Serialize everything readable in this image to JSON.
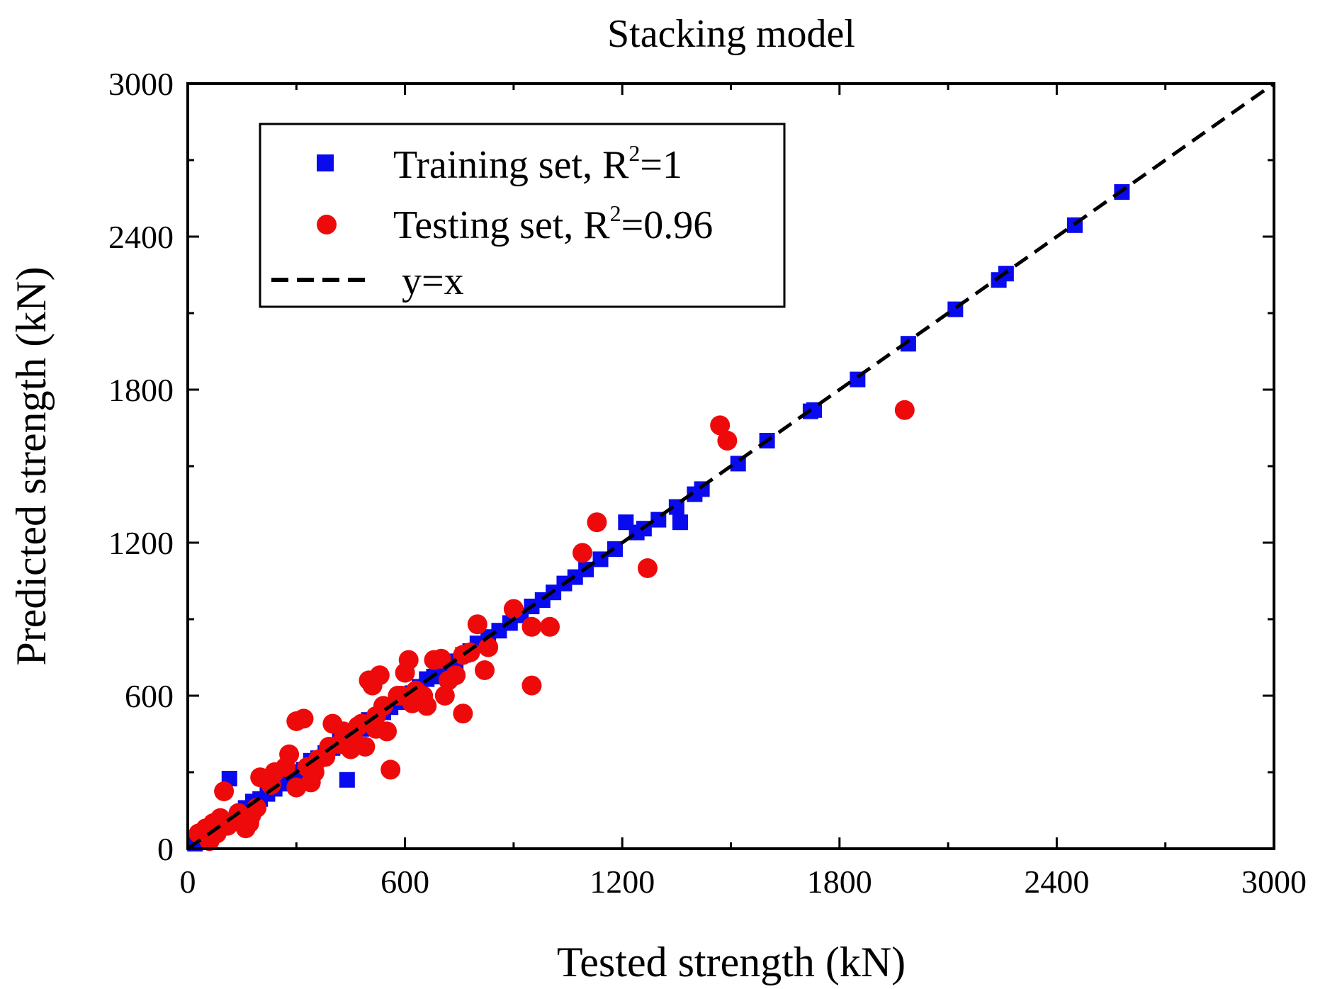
{
  "chart_data": {
    "type": "scatter",
    "title": "Stacking model",
    "xlabel": "Tested strength (kN)",
    "ylabel": "Predicted strength (kN)",
    "xlim": [
      0,
      3000
    ],
    "ylim": [
      0,
      3000
    ],
    "xticks": [
      "0",
      "600",
      "1200",
      "1800",
      "2400",
      "3000"
    ],
    "yticks": [
      "0",
      "600",
      "1200",
      "1800",
      "2400",
      "3000"
    ],
    "legend": {
      "position": "top-left",
      "entries": [
        {
          "name": "Training set, R",
          "sup": "2",
          "tail": "=1",
          "marker": "square"
        },
        {
          "name": "Testing set, R",
          "sup": "2",
          "tail": "=0.96",
          "marker": "circle"
        },
        {
          "name": "y=x",
          "marker": "dashed-line"
        }
      ]
    },
    "colors": {
      "training": "#0a0aee",
      "testing": "#ee0a0a",
      "line": "#000000"
    },
    "reference_line": {
      "name": "y=x",
      "from": [
        0,
        0
      ],
      "to": [
        3000,
        3000
      ]
    },
    "series": [
      {
        "name": "Training set",
        "marker": "square",
        "points": [
          [
            20,
            20
          ],
          [
            40,
            45
          ],
          [
            60,
            55
          ],
          [
            80,
            85
          ],
          [
            100,
            95
          ],
          [
            115,
            275
          ],
          [
            120,
            110
          ],
          [
            140,
            135
          ],
          [
            160,
            160
          ],
          [
            180,
            185
          ],
          [
            200,
            195
          ],
          [
            220,
            215
          ],
          [
            240,
            235
          ],
          [
            260,
            255
          ],
          [
            280,
            285
          ],
          [
            300,
            300
          ],
          [
            320,
            310
          ],
          [
            340,
            345
          ],
          [
            360,
            355
          ],
          [
            380,
            375
          ],
          [
            400,
            395
          ],
          [
            420,
            425
          ],
          [
            440,
            270
          ],
          [
            460,
            455
          ],
          [
            480,
            470
          ],
          [
            500,
            505
          ],
          [
            520,
            515
          ],
          [
            540,
            535
          ],
          [
            560,
            555
          ],
          [
            580,
            575
          ],
          [
            600,
            600
          ],
          [
            620,
            610
          ],
          [
            640,
            635
          ],
          [
            660,
            665
          ],
          [
            680,
            675
          ],
          [
            700,
            705
          ],
          [
            720,
            715
          ],
          [
            740,
            735
          ],
          [
            760,
            760
          ],
          [
            780,
            775
          ],
          [
            800,
            805
          ],
          [
            830,
            830
          ],
          [
            860,
            855
          ],
          [
            890,
            885
          ],
          [
            920,
            915
          ],
          [
            950,
            950
          ],
          [
            980,
            975
          ],
          [
            1010,
            1005
          ],
          [
            1040,
            1040
          ],
          [
            1070,
            1065
          ],
          [
            1100,
            1095
          ],
          [
            1140,
            1135
          ],
          [
            1180,
            1175
          ],
          [
            1210,
            1280
          ],
          [
            1240,
            1240
          ],
          [
            1260,
            1255
          ],
          [
            1300,
            1290
          ],
          [
            1350,
            1340
          ],
          [
            1360,
            1280
          ],
          [
            1400,
            1390
          ],
          [
            1420,
            1410
          ],
          [
            1520,
            1510
          ],
          [
            1600,
            1600
          ],
          [
            1720,
            1715
          ],
          [
            1730,
            1720
          ],
          [
            1850,
            1840
          ],
          [
            1990,
            1980
          ],
          [
            2120,
            2115
          ],
          [
            2240,
            2230
          ],
          [
            2260,
            2255
          ],
          [
            2450,
            2445
          ],
          [
            2580,
            2575
          ]
        ]
      },
      {
        "name": "Testing set",
        "marker": "circle",
        "points": [
          [
            30,
            60
          ],
          [
            50,
            80
          ],
          [
            60,
            30
          ],
          [
            70,
            100
          ],
          [
            80,
            60
          ],
          [
            90,
            120
          ],
          [
            100,
            225
          ],
          [
            110,
            90
          ],
          [
            140,
            140
          ],
          [
            160,
            80
          ],
          [
            170,
            100
          ],
          [
            175,
            130
          ],
          [
            190,
            160
          ],
          [
            200,
            280
          ],
          [
            230,
            250
          ],
          [
            240,
            300
          ],
          [
            270,
            320
          ],
          [
            280,
            370
          ],
          [
            300,
            240
          ],
          [
            300,
            500
          ],
          [
            320,
            510
          ],
          [
            330,
            320
          ],
          [
            340,
            260
          ],
          [
            350,
            300
          ],
          [
            360,
            350
          ],
          [
            380,
            360
          ],
          [
            390,
            400
          ],
          [
            400,
            490
          ],
          [
            420,
            410
          ],
          [
            430,
            460
          ],
          [
            450,
            390
          ],
          [
            460,
            420
          ],
          [
            470,
            480
          ],
          [
            480,
            490
          ],
          [
            490,
            400
          ],
          [
            500,
            660
          ],
          [
            510,
            640
          ],
          [
            520,
            470
          ],
          [
            520,
            520
          ],
          [
            530,
            680
          ],
          [
            540,
            560
          ],
          [
            550,
            460
          ],
          [
            560,
            310
          ],
          [
            580,
            600
          ],
          [
            590,
            600
          ],
          [
            600,
            690
          ],
          [
            610,
            740
          ],
          [
            620,
            570
          ],
          [
            630,
            620
          ],
          [
            650,
            600
          ],
          [
            660,
            560
          ],
          [
            680,
            740
          ],
          [
            700,
            745
          ],
          [
            710,
            600
          ],
          [
            720,
            660
          ],
          [
            740,
            680
          ],
          [
            760,
            530
          ],
          [
            760,
            760
          ],
          [
            780,
            770
          ],
          [
            800,
            880
          ],
          [
            820,
            700
          ],
          [
            830,
            790
          ],
          [
            900,
            940
          ],
          [
            950,
            870
          ],
          [
            950,
            640
          ],
          [
            1000,
            870
          ],
          [
            1090,
            1160
          ],
          [
            1130,
            1280
          ],
          [
            1270,
            1100
          ],
          [
            1470,
            1660
          ],
          [
            1490,
            1600
          ],
          [
            1980,
            1720
          ]
        ]
      }
    ]
  }
}
